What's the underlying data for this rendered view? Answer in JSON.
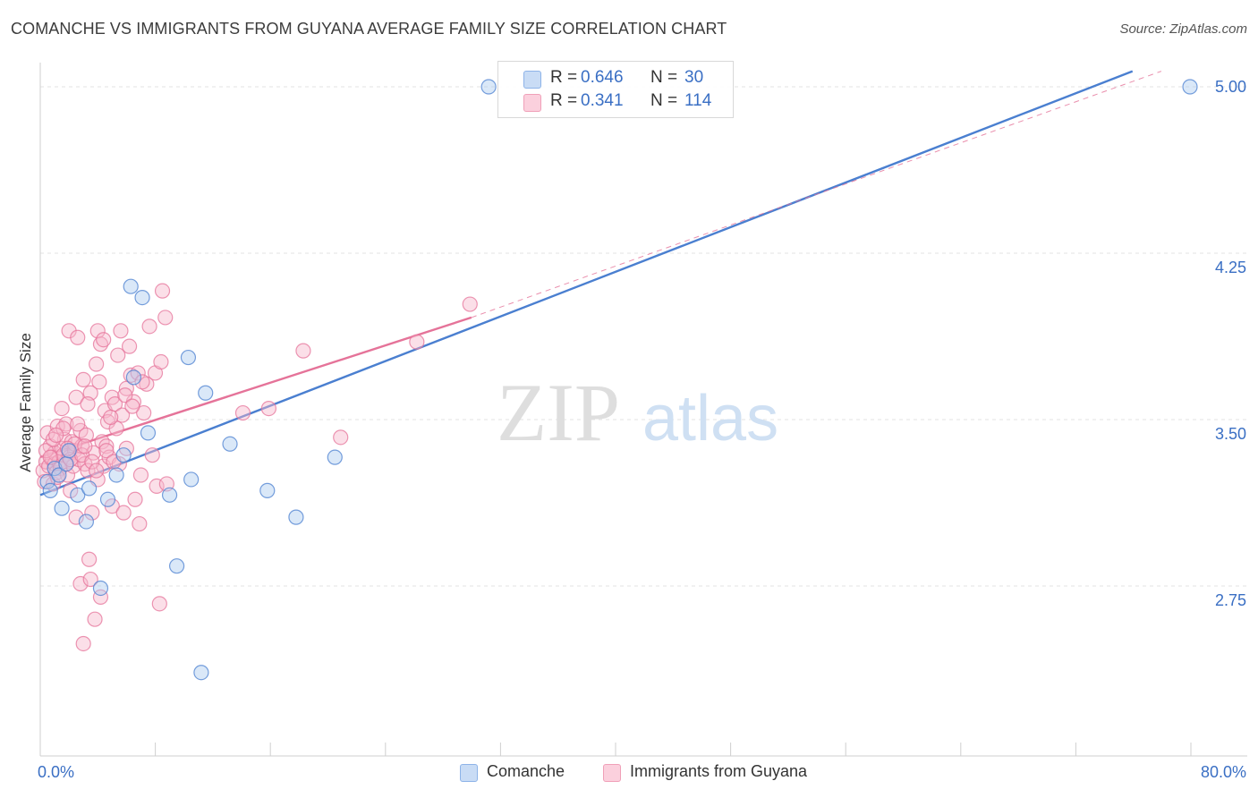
{
  "title": "COMANCHE VS IMMIGRANTS FROM GUYANA AVERAGE FAMILY SIZE CORRELATION CHART",
  "source": "Source: ZipAtlas.com",
  "watermark": {
    "zip": "ZIP",
    "atlas": "atlas"
  },
  "legend": {
    "rows": [
      {
        "r_label": "R =",
        "r_value": "0.646",
        "n_label": "N =",
        "n_value": "30",
        "color": "#aecbf0"
      },
      {
        "r_label": "R =",
        "r_value": "0.341",
        "n_label": "N =",
        "n_value": "114",
        "color": "#f7b8cb"
      }
    ]
  },
  "bottom_legend": [
    {
      "label": "Comanche",
      "color": "#aecbf0"
    },
    {
      "label": "Immigrants from Guyana",
      "color": "#f7b8cb"
    }
  ],
  "chart_data": {
    "type": "scatter",
    "title": "COMANCHE VS IMMIGRANTS FROM GUYANA AVERAGE FAMILY SIZE CORRELATION CHART",
    "xlabel": "",
    "ylabel": "Average Family Size",
    "xlim": [
      0,
      80
    ],
    "ylim": [
      2.2,
      5.1
    ],
    "x_tick_labels": [
      "0.0%",
      "80.0%"
    ],
    "y_ticks": [
      2.75,
      3.5,
      4.25,
      5.0
    ],
    "y_tick_labels": [
      "2.75",
      "3.50",
      "4.25",
      "5.00"
    ],
    "grid": "horizontal dashed",
    "legend_position": "top-center",
    "series": [
      {
        "name": "Comanche",
        "color": "#4a7fd0",
        "fill": "#aecbf0",
        "trend": {
          "x": [
            0,
            76
          ],
          "y": [
            3.16,
            5.07
          ],
          "style": "solid"
        },
        "points": [
          [
            0.5,
            3.22
          ],
          [
            0.7,
            3.18
          ],
          [
            1.0,
            3.28
          ],
          [
            1.3,
            3.25
          ],
          [
            1.5,
            3.1
          ],
          [
            1.8,
            3.3
          ],
          [
            2.0,
            3.36
          ],
          [
            2.6,
            3.16
          ],
          [
            3.2,
            3.04
          ],
          [
            3.4,
            3.19
          ],
          [
            4.2,
            2.74
          ],
          [
            4.7,
            3.14
          ],
          [
            5.3,
            3.25
          ],
          [
            5.8,
            3.34
          ],
          [
            6.3,
            4.1
          ],
          [
            7.1,
            4.05
          ],
          [
            7.5,
            3.44
          ],
          [
            9.0,
            3.16
          ],
          [
            9.5,
            2.84
          ],
          [
            10.3,
            3.78
          ],
          [
            10.5,
            3.23
          ],
          [
            11.2,
            2.36
          ],
          [
            11.5,
            3.62
          ],
          [
            13.2,
            3.39
          ],
          [
            15.8,
            3.18
          ],
          [
            17.8,
            3.06
          ],
          [
            20.5,
            3.33
          ],
          [
            31.2,
            5.0
          ],
          [
            80.0,
            5.0
          ],
          [
            6.5,
            3.69
          ]
        ]
      },
      {
        "name": "Immigrants from Guyana",
        "color": "#e57399",
        "fill": "#f7b8cb",
        "trend": {
          "x": [
            0,
            30
          ],
          "y": [
            3.33,
            3.96
          ],
          "style": "solid"
        },
        "trend_extension": {
          "x": [
            30,
            78
          ],
          "y": [
            3.96,
            5.07
          ],
          "style": "dashed"
        },
        "points": [
          [
            0.2,
            3.27
          ],
          [
            0.3,
            3.22
          ],
          [
            0.4,
            3.31
          ],
          [
            0.5,
            3.44
          ],
          [
            0.6,
            3.29
          ],
          [
            0.7,
            3.38
          ],
          [
            0.8,
            3.33
          ],
          [
            0.9,
            3.21
          ],
          [
            1.0,
            3.3
          ],
          [
            1.0,
            3.35
          ],
          [
            1.1,
            3.26
          ],
          [
            1.2,
            3.47
          ],
          [
            1.3,
            3.31
          ],
          [
            1.4,
            3.28
          ],
          [
            1.5,
            3.37
          ],
          [
            1.5,
            3.55
          ],
          [
            1.6,
            3.34
          ],
          [
            1.7,
            3.41
          ],
          [
            1.8,
            3.3
          ],
          [
            1.8,
            3.48
          ],
          [
            1.9,
            3.25
          ],
          [
            2.0,
            3.9
          ],
          [
            2.0,
            3.33
          ],
          [
            2.1,
            3.18
          ],
          [
            2.2,
            3.4
          ],
          [
            2.3,
            3.29
          ],
          [
            2.4,
            3.36
          ],
          [
            2.5,
            3.6
          ],
          [
            2.5,
            3.06
          ],
          [
            2.6,
            3.87
          ],
          [
            2.7,
            3.32
          ],
          [
            2.8,
            3.45
          ],
          [
            2.8,
            2.76
          ],
          [
            2.9,
            3.38
          ],
          [
            3.0,
            3.68
          ],
          [
            3.0,
            2.49
          ],
          [
            3.1,
            3.3
          ],
          [
            3.2,
            3.43
          ],
          [
            3.3,
            3.27
          ],
          [
            3.4,
            2.87
          ],
          [
            3.5,
            3.62
          ],
          [
            3.5,
            2.78
          ],
          [
            3.6,
            3.08
          ],
          [
            3.7,
            3.35
          ],
          [
            3.8,
            2.6
          ],
          [
            3.9,
            3.75
          ],
          [
            4.0,
            3.9
          ],
          [
            4.0,
            3.23
          ],
          [
            4.1,
            3.67
          ],
          [
            4.2,
            3.84
          ],
          [
            4.2,
            2.7
          ],
          [
            4.3,
            3.4
          ],
          [
            4.4,
            3.29
          ],
          [
            4.5,
            3.54
          ],
          [
            4.6,
            3.38
          ],
          [
            4.7,
            3.49
          ],
          [
            4.8,
            3.33
          ],
          [
            5.0,
            3.6
          ],
          [
            5.0,
            3.11
          ],
          [
            5.2,
            3.57
          ],
          [
            5.3,
            3.46
          ],
          [
            5.5,
            3.3
          ],
          [
            5.6,
            3.9
          ],
          [
            5.7,
            3.52
          ],
          [
            5.8,
            3.08
          ],
          [
            6.0,
            3.64
          ],
          [
            6.0,
            3.37
          ],
          [
            6.2,
            3.83
          ],
          [
            6.3,
            3.7
          ],
          [
            6.5,
            3.58
          ],
          [
            6.6,
            3.14
          ],
          [
            6.8,
            3.71
          ],
          [
            6.9,
            3.03
          ],
          [
            7.0,
            3.25
          ],
          [
            7.2,
            3.53
          ],
          [
            7.4,
            3.66
          ],
          [
            7.6,
            3.92
          ],
          [
            7.8,
            3.34
          ],
          [
            8.0,
            3.71
          ],
          [
            8.1,
            3.2
          ],
          [
            8.3,
            2.67
          ],
          [
            8.4,
            3.76
          ],
          [
            8.5,
            4.08
          ],
          [
            8.7,
            3.96
          ],
          [
            8.8,
            3.21
          ],
          [
            14.1,
            3.53
          ],
          [
            15.9,
            3.55
          ],
          [
            18.3,
            3.81
          ],
          [
            20.9,
            3.42
          ],
          [
            26.2,
            3.85
          ],
          [
            29.9,
            4.02
          ],
          [
            0.4,
            3.36
          ],
          [
            0.9,
            3.41
          ],
          [
            1.2,
            3.24
          ],
          [
            1.6,
            3.46
          ],
          [
            2.1,
            3.32
          ],
          [
            2.4,
            3.39
          ],
          [
            2.9,
            3.34
          ],
          [
            3.3,
            3.57
          ],
          [
            3.6,
            3.31
          ],
          [
            4.4,
            3.86
          ],
          [
            4.9,
            3.51
          ],
          [
            5.4,
            3.79
          ],
          [
            5.9,
            3.61
          ],
          [
            6.4,
            3.56
          ],
          [
            7.1,
            3.67
          ],
          [
            1.1,
            3.43
          ],
          [
            1.9,
            3.37
          ],
          [
            2.6,
            3.48
          ],
          [
            3.1,
            3.38
          ],
          [
            3.9,
            3.27
          ],
          [
            4.6,
            3.36
          ],
          [
            5.1,
            3.31
          ],
          [
            0.7,
            3.33
          ]
        ]
      }
    ]
  }
}
